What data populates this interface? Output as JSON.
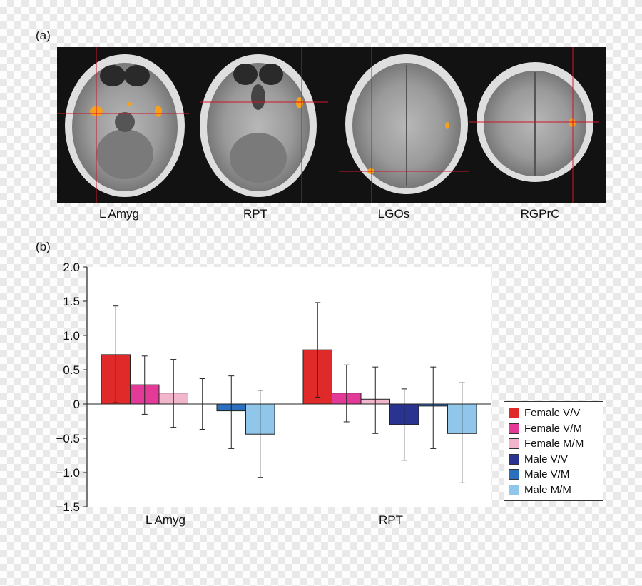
{
  "panel_a_label": "(a)",
  "panel_b_label": "(b)",
  "scans": [
    {
      "label": "L Amyg"
    },
    {
      "label": "RPT"
    },
    {
      "label": "LGOs"
    },
    {
      "label": "RGPrC"
    }
  ],
  "colors": {
    "Female V/V": "#e02a2a",
    "Female V/M": "#e23a96",
    "Female M/M": "#f1b5cc",
    "Male V/V": "#2a3490",
    "Male V/M": "#2b6fbf",
    "Male M/M": "#8fc6ea",
    "activation": "#f7a01b",
    "crosshair": "#d0152a"
  },
  "chart_data": {
    "type": "bar",
    "title": "",
    "xlabel": "",
    "ylabel": "",
    "categories": [
      "L Amyg",
      "RPT"
    ],
    "ylim": [
      -1.5,
      2.0
    ],
    "yticks": [
      2.0,
      1.5,
      1.0,
      0.5,
      0,
      -0.5,
      -1.0,
      -1.5
    ],
    "ytick_labels": [
      "2.0",
      "1.5",
      "1.0",
      "0.5",
      "0",
      "−0.5",
      "−1.0",
      "−1.5"
    ],
    "legend_position": "right",
    "grid": false,
    "series": [
      {
        "name": "Female V/V",
        "values": [
          0.72,
          0.79
        ],
        "err_low": [
          0.02,
          0.1
        ],
        "err_high": [
          1.43,
          1.48
        ]
      },
      {
        "name": "Female V/M",
        "values": [
          0.28,
          0.16
        ],
        "err_low": [
          -0.15,
          -0.26
        ],
        "err_high": [
          0.7,
          0.57
        ]
      },
      {
        "name": "Female M/M",
        "values": [
          0.16,
          0.07
        ],
        "err_low": [
          -0.34,
          -0.43
        ],
        "err_high": [
          0.65,
          0.54
        ]
      },
      {
        "name": "Male V/V",
        "values": [
          0.0,
          -0.3
        ],
        "err_low": [
          -0.37,
          -0.82
        ],
        "err_high": [
          0.37,
          0.22
        ]
      },
      {
        "name": "Male V/M",
        "values": [
          -0.1,
          -0.03
        ],
        "err_low": [
          -0.65,
          -0.65
        ],
        "err_high": [
          0.41,
          0.54
        ]
      },
      {
        "name": "Male M/M",
        "values": [
          -0.44,
          -0.43
        ],
        "err_low": [
          -1.07,
          -1.15
        ],
        "err_high": [
          0.2,
          0.31
        ]
      }
    ]
  }
}
